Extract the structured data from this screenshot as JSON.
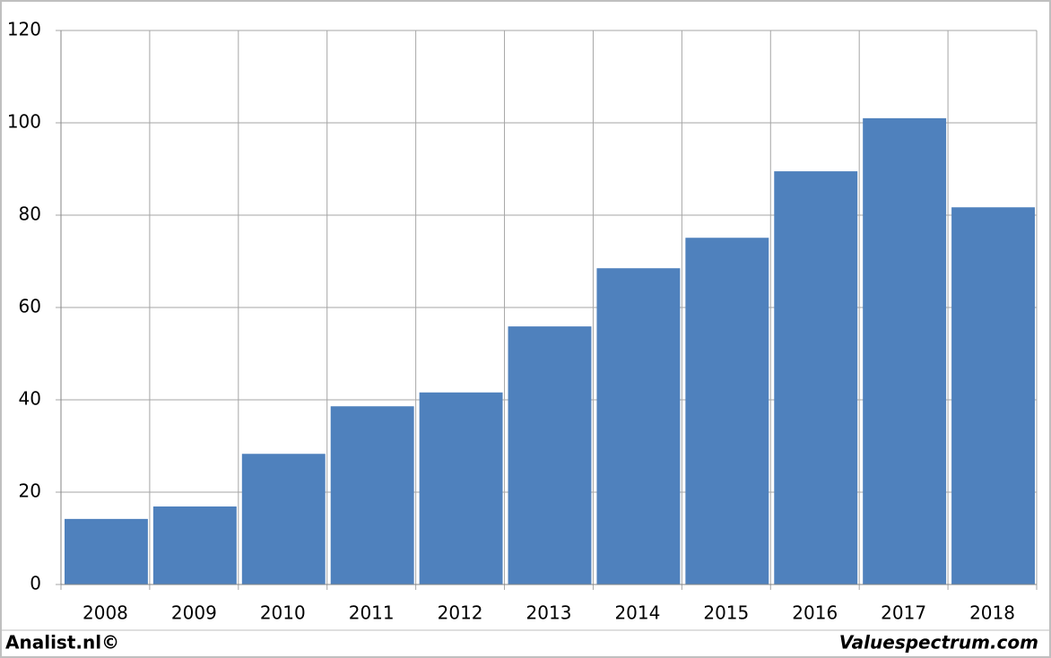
{
  "chart_data": {
    "type": "bar",
    "categories": [
      "2008",
      "2009",
      "2010",
      "2011",
      "2012",
      "2013",
      "2014",
      "2015",
      "2016",
      "2017",
      "2018"
    ],
    "values": [
      14.2,
      16.9,
      28.3,
      38.6,
      41.6,
      55.9,
      68.5,
      75.1,
      89.5,
      101,
      81.7
    ],
    "color": "#4f81bd",
    "ylim": [
      0,
      120
    ],
    "yticks": [
      0,
      20,
      40,
      60,
      80,
      100,
      120
    ],
    "grid": true,
    "credit_left": "Analist.nl©",
    "credit_right": "Valuespectrum.com"
  }
}
